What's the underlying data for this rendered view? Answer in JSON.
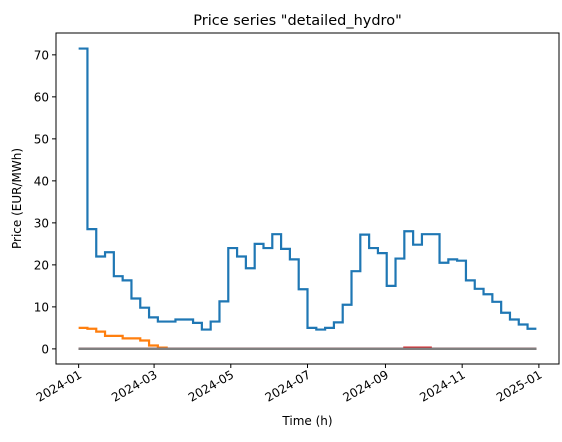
{
  "chart_data": {
    "type": "line",
    "title": "Price series \"detailed_hydro\"",
    "xlabel": "Time (h)",
    "ylabel": "Price (EUR/MWh)",
    "x_ticks": [
      "2024-01",
      "2024-03",
      "2024-05",
      "2024-07",
      "2024-09",
      "2024-11",
      "2025-01"
    ],
    "y_ticks": [
      "0",
      "10",
      "20",
      "30",
      "40",
      "50",
      "60",
      "70"
    ],
    "xlim": [
      "2023-12-14",
      "2025-01-17"
    ],
    "ylim": [
      -3.6,
      75.2
    ],
    "grid": false,
    "legend": "none",
    "step": "post",
    "series": [
      {
        "color": "#1f77b4",
        "x": [
          "2024-01-01",
          "2024-01-08",
          "2024-01-15",
          "2024-01-22",
          "2024-01-29",
          "2024-02-05",
          "2024-02-12",
          "2024-02-19",
          "2024-02-26",
          "2024-03-04",
          "2024-03-11",
          "2024-03-18",
          "2024-03-25",
          "2024-04-01",
          "2024-04-08",
          "2024-04-15",
          "2024-04-22",
          "2024-04-29",
          "2024-05-06",
          "2024-05-13",
          "2024-05-20",
          "2024-05-27",
          "2024-06-03",
          "2024-06-10",
          "2024-06-17",
          "2024-06-24",
          "2024-07-01",
          "2024-07-08",
          "2024-07-15",
          "2024-07-22",
          "2024-07-29",
          "2024-08-05",
          "2024-08-12",
          "2024-08-19",
          "2024-08-26",
          "2024-09-02",
          "2024-09-09",
          "2024-09-16",
          "2024-09-23",
          "2024-09-30",
          "2024-10-07",
          "2024-10-14",
          "2024-10-21",
          "2024-10-28",
          "2024-11-04",
          "2024-11-11",
          "2024-11-18",
          "2024-11-25",
          "2024-12-02",
          "2024-12-09",
          "2024-12-16",
          "2024-12-23",
          "2024-12-30"
        ],
        "values": [
          71.5,
          28.5,
          22,
          23,
          17.3,
          16.3,
          12,
          9.8,
          7.5,
          6.5,
          6.5,
          7,
          7,
          6.2,
          4.6,
          6.5,
          11.3,
          24,
          22,
          19.2,
          25,
          24,
          27.3,
          23.8,
          21.3,
          14.2,
          5,
          4.6,
          5,
          6.3,
          10.5,
          18.5,
          27.2,
          24,
          22.8,
          15,
          21.5,
          28,
          24.8,
          27.3,
          27.3,
          20.5,
          21.3,
          21,
          16.3,
          14.3,
          13,
          11.2,
          8.6,
          7,
          5.8,
          4.8,
          4.8
        ]
      },
      {
        "color": "#ff7f0e",
        "x": [
          "2024-01-01",
          "2024-01-08",
          "2024-01-15",
          "2024-01-22",
          "2024-01-29",
          "2024-02-05",
          "2024-02-12",
          "2024-02-19",
          "2024-02-26",
          "2024-03-04",
          "2024-03-11",
          "2024-12-30"
        ],
        "values": [
          5,
          4.8,
          4.1,
          3.1,
          3.1,
          2.5,
          2.5,
          2,
          0.8,
          0.3,
          0,
          0
        ]
      },
      {
        "color": "#2ca02c",
        "x": [
          "2024-01-01",
          "2024-12-30"
        ],
        "values": [
          0,
          0
        ]
      },
      {
        "color": "#d62728",
        "x": [
          "2024-01-01",
          "2024-09-16",
          "2024-10-07",
          "2024-12-30"
        ],
        "values": [
          0,
          0.3,
          0,
          0
        ]
      },
      {
        "color": "#9467bd",
        "x": [
          "2024-01-01",
          "2024-12-30"
        ],
        "values": [
          0,
          0
        ]
      },
      {
        "color": "#8c564b",
        "x": [
          "2024-01-01",
          "2024-12-30"
        ],
        "values": [
          0,
          0
        ]
      },
      {
        "color": "#7f7f7f",
        "x": [
          "2024-01-01",
          "2024-12-30"
        ],
        "values": [
          0,
          0
        ]
      }
    ]
  }
}
